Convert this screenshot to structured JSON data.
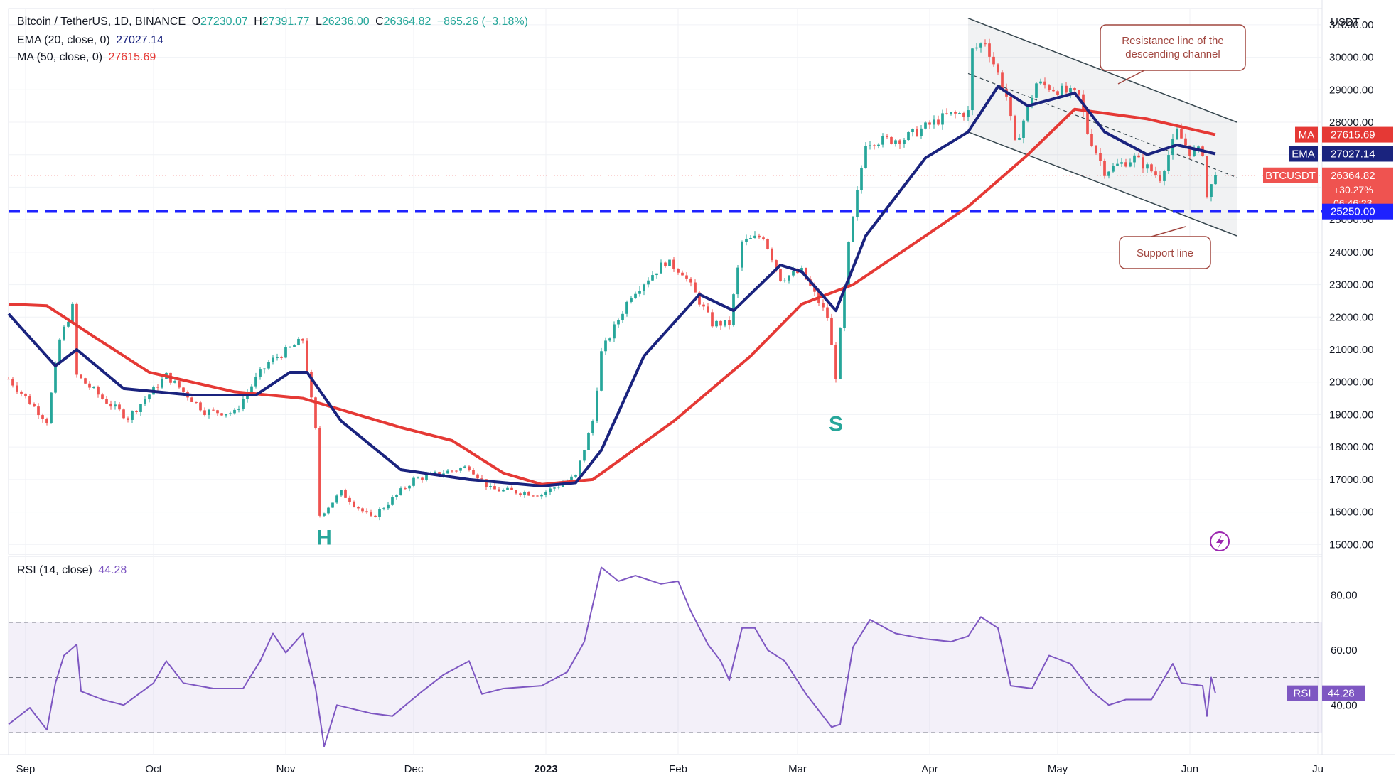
{
  "header": {
    "symbol_line": "Bitcoin / TetherUS, 1D, BINANCE",
    "open_label": "O",
    "open": "27230.07",
    "high_label": "H",
    "high": "27391.77",
    "low_label": "L",
    "low": "26236.00",
    "close_label": "C",
    "close": "26364.82",
    "change": "−865.26 (−3.18%)",
    "ema_label": "EMA (20, close, 0)",
    "ema_value": "27027.14",
    "ma_label": "MA (50, close, 0)",
    "ma_value": "27615.69",
    "rsi_label": "RSI (14, close)",
    "rsi_value": "44.28"
  },
  "chart_data": [
    {
      "type": "candlestick",
      "title": "Bitcoin / TetherUS, 1D, BINANCE",
      "y_unit": "USDT",
      "ylim": [
        14700,
        31500
      ],
      "y_ticks": [
        15000,
        16000,
        17000,
        18000,
        19000,
        20000,
        21000,
        22000,
        23000,
        24000,
        25000,
        26000,
        27000,
        28000,
        29000,
        30000,
        31000
      ],
      "y_tick_labels": [
        "15000.00",
        "16000.00",
        "17000.00",
        "18000.00",
        "19000.00",
        "20000.00",
        "21000.00",
        "22000.00",
        "23000.00",
        "24000.00",
        "25000.00",
        "26000.00",
        "27000.00",
        "28000.00",
        "29000.00",
        "30000.00",
        "31000.00"
      ],
      "x_range": [
        "2022-08-28",
        "2023-07-02"
      ],
      "x_ticks": [
        {
          "label": "Sep",
          "date": "2022-09-01"
        },
        {
          "label": "Oct",
          "date": "2022-10-01"
        },
        {
          "label": "Nov",
          "date": "2022-11-01"
        },
        {
          "label": "Dec",
          "date": "2022-12-01"
        },
        {
          "label": "2023",
          "date": "2023-01-01"
        },
        {
          "label": "Feb",
          "date": "2023-02-01"
        },
        {
          "label": "Mar",
          "date": "2023-03-01"
        },
        {
          "label": "Apr",
          "date": "2023-04-01"
        },
        {
          "label": "May",
          "date": "2023-05-01"
        },
        {
          "label": "Jun",
          "date": "2023-06-01"
        },
        {
          "label": "Ju",
          "date": "2023-07-01"
        }
      ],
      "close_path": [
        [
          "2022-08-28",
          20100
        ],
        [
          "2022-09-06",
          18800
        ],
        [
          "2022-09-09",
          21300
        ],
        [
          "2022-09-12",
          22300
        ],
        [
          "2022-09-13",
          20200
        ],
        [
          "2022-09-19",
          19500
        ],
        [
          "2022-09-25",
          18900
        ],
        [
          "2022-10-04",
          20200
        ],
        [
          "2022-10-13",
          19100
        ],
        [
          "2022-10-20",
          19050
        ],
        [
          "2022-10-25",
          20100
        ],
        [
          "2022-10-28",
          20600
        ],
        [
          "2022-11-05",
          21300
        ],
        [
          "2022-11-08",
          18500
        ],
        [
          "2022-11-09",
          15900
        ],
        [
          "2022-11-14",
          16600
        ],
        [
          "2022-11-21",
          15800
        ],
        [
          "2022-12-01",
          17000
        ],
        [
          "2022-12-14",
          17400
        ],
        [
          "2022-12-19",
          16700
        ],
        [
          "2022-12-31",
          16550
        ],
        [
          "2023-01-08",
          17100
        ],
        [
          "2023-01-12",
          18800
        ],
        [
          "2023-01-14",
          20900
        ],
        [
          "2023-01-21",
          22700
        ],
        [
          "2023-01-29",
          23700
        ],
        [
          "2023-02-02",
          23400
        ],
        [
          "2023-02-09",
          21800
        ],
        [
          "2023-02-13",
          21800
        ],
        [
          "2023-02-16",
          24300
        ],
        [
          "2023-02-21",
          24500
        ],
        [
          "2023-02-25",
          23200
        ],
        [
          "2023-03-02",
          23400
        ],
        [
          "2023-03-08",
          22000
        ],
        [
          "2023-03-10",
          20200
        ],
        [
          "2023-03-13",
          24200
        ],
        [
          "2023-03-17",
          27400
        ],
        [
          "2023-03-26",
          27500
        ],
        [
          "2023-04-05",
          28200
        ],
        [
          "2023-04-10",
          28300
        ],
        [
          "2023-04-11",
          30200
        ],
        [
          "2023-04-14",
          30500
        ],
        [
          "2023-04-19",
          28800
        ],
        [
          "2023-04-21",
          27300
        ],
        [
          "2023-04-26",
          29200
        ],
        [
          "2023-05-06",
          28800
        ],
        [
          "2023-05-08",
          27700
        ],
        [
          "2023-05-12",
          26500
        ],
        [
          "2023-05-19",
          26900
        ],
        [
          "2023-05-25",
          26300
        ],
        [
          "2023-05-29",
          27700
        ],
        [
          "2023-06-01",
          27100
        ],
        [
          "2023-06-04",
          27100
        ],
        [
          "2023-06-05",
          25700
        ],
        [
          "2023-06-07",
          26364.82
        ]
      ],
      "ema20": {
        "label": "EMA",
        "value": "27027.14",
        "color": "#1a237e",
        "path": [
          [
            "2022-08-28",
            22100
          ],
          [
            "2022-09-08",
            20500
          ],
          [
            "2022-09-13",
            21000
          ],
          [
            "2022-09-24",
            19800
          ],
          [
            "2022-10-10",
            19600
          ],
          [
            "2022-10-25",
            19600
          ],
          [
            "2022-11-02",
            20300
          ],
          [
            "2022-11-06",
            20300
          ],
          [
            "2022-11-14",
            18800
          ],
          [
            "2022-11-28",
            17300
          ],
          [
            "2022-12-14",
            17000
          ],
          [
            "2022-12-31",
            16800
          ],
          [
            "2023-01-08",
            16900
          ],
          [
            "2023-01-14",
            17900
          ],
          [
            "2023-01-24",
            20800
          ],
          [
            "2023-02-06",
            22700
          ],
          [
            "2023-02-14",
            22200
          ],
          [
            "2023-02-25",
            23600
          ],
          [
            "2023-03-02",
            23400
          ],
          [
            "2023-03-10",
            22200
          ],
          [
            "2023-03-17",
            24500
          ],
          [
            "2023-03-31",
            26900
          ],
          [
            "2023-04-10",
            27700
          ],
          [
            "2023-04-17",
            29100
          ],
          [
            "2023-04-24",
            28500
          ],
          [
            "2023-05-05",
            28900
          ],
          [
            "2023-05-12",
            27700
          ],
          [
            "2023-05-22",
            27000
          ],
          [
            "2023-05-29",
            27300
          ],
          [
            "2023-06-07",
            27027.14
          ]
        ]
      },
      "ma50": {
        "label": "MA",
        "value": "27615.69",
        "color": "#e53935",
        "path": [
          [
            "2022-08-28",
            22400
          ],
          [
            "2022-09-06",
            22350
          ],
          [
            "2022-09-17",
            21400
          ],
          [
            "2022-09-30",
            20300
          ],
          [
            "2022-10-20",
            19700
          ],
          [
            "2022-11-05",
            19500
          ],
          [
            "2022-11-28",
            18600
          ],
          [
            "2022-12-10",
            18200
          ],
          [
            "2022-12-22",
            17200
          ],
          [
            "2022-12-31",
            16850
          ],
          [
            "2023-01-12",
            17000
          ],
          [
            "2023-01-31",
            18800
          ],
          [
            "2023-02-18",
            20800
          ],
          [
            "2023-03-02",
            22400
          ],
          [
            "2023-03-14",
            23000
          ],
          [
            "2023-03-31",
            24500
          ],
          [
            "2023-04-10",
            25400
          ],
          [
            "2023-04-24",
            27000
          ],
          [
            "2023-05-05",
            28400
          ],
          [
            "2023-05-22",
            28100
          ],
          [
            "2023-06-07",
            27615.69
          ]
        ]
      },
      "price_tags": [
        {
          "label": "MA",
          "value": "27615.69",
          "color": "#e53935"
        },
        {
          "label": "EMA",
          "value": "27027.14",
          "color": "#1a237e"
        },
        {
          "label": "BTCUSDT",
          "value": "26364.82",
          "extra": [
            "+30.27%",
            "06:46:23"
          ],
          "color": "#ef5350"
        },
        {
          "label": "",
          "value": "25250.00",
          "color": "#1e22ff"
        }
      ],
      "support_level": {
        "value": 25250,
        "label": "25250.00",
        "color": "#1e22ff"
      },
      "channel": {
        "resistance": [
          [
            "2023-04-10",
            31200
          ],
          [
            "2023-06-12",
            28000
          ]
        ],
        "mid": [
          [
            "2023-04-10",
            29500
          ],
          [
            "2023-06-12",
            26300
          ]
        ],
        "support": [
          [
            "2023-04-10",
            27700
          ],
          [
            "2023-06-12",
            24500
          ]
        ]
      },
      "annotations": [
        {
          "text_lines": [
            "Resistance line of the",
            "descending channel"
          ]
        },
        {
          "text_lines": [
            "Support line"
          ]
        },
        {
          "text": "H",
          "date": "2022-11-10",
          "price": 15000
        },
        {
          "text": "S",
          "date": "2023-03-10",
          "price": 18500
        }
      ]
    },
    {
      "type": "line",
      "title": "RSI (14, close)",
      "series": [
        {
          "name": "RSI",
          "value": "44.28",
          "color": "#7e57c2",
          "path": [
            [
              "2022-08-28",
              33
            ],
            [
              "2022-09-02",
              39
            ],
            [
              "2022-09-06",
              31
            ],
            [
              "2022-09-08",
              48
            ],
            [
              "2022-09-10",
              58
            ],
            [
              "2022-09-13",
              62
            ],
            [
              "2022-09-14",
              45
            ],
            [
              "2022-09-19",
              42
            ],
            [
              "2022-09-24",
              40
            ],
            [
              "2022-10-01",
              48
            ],
            [
              "2022-10-04",
              56
            ],
            [
              "2022-10-08",
              48
            ],
            [
              "2022-10-15",
              46
            ],
            [
              "2022-10-22",
              46
            ],
            [
              "2022-10-26",
              56
            ],
            [
              "2022-10-29",
              66
            ],
            [
              "2022-11-01",
              59
            ],
            [
              "2022-11-05",
              66
            ],
            [
              "2022-11-08",
              46
            ],
            [
              "2022-11-10",
              25
            ],
            [
              "2022-11-13",
              40
            ],
            [
              "2022-11-21",
              37
            ],
            [
              "2022-11-26",
              36
            ],
            [
              "2022-12-03",
              45
            ],
            [
              "2022-12-08",
              51
            ],
            [
              "2022-12-14",
              56
            ],
            [
              "2022-12-17",
              44
            ],
            [
              "2022-12-22",
              46
            ],
            [
              "2022-12-31",
              47
            ],
            [
              "2023-01-06",
              52
            ],
            [
              "2023-01-10",
              63
            ],
            [
              "2023-01-14",
              90
            ],
            [
              "2023-01-18",
              85
            ],
            [
              "2023-01-22",
              87
            ],
            [
              "2023-01-28",
              84
            ],
            [
              "2023-02-01",
              85
            ],
            [
              "2023-02-04",
              74
            ],
            [
              "2023-02-08",
              62
            ],
            [
              "2023-02-11",
              56
            ],
            [
              "2023-02-13",
              49
            ],
            [
              "2023-02-16",
              68
            ],
            [
              "2023-02-19",
              68
            ],
            [
              "2023-02-22",
              60
            ],
            [
              "2023-02-26",
              56
            ],
            [
              "2023-03-03",
              44
            ],
            [
              "2023-03-09",
              32
            ],
            [
              "2023-03-11",
              33
            ],
            [
              "2023-03-14",
              61
            ],
            [
              "2023-03-18",
              71
            ],
            [
              "2023-03-24",
              66
            ],
            [
              "2023-03-31",
              64
            ],
            [
              "2023-04-06",
              63
            ],
            [
              "2023-04-10",
              65
            ],
            [
              "2023-04-13",
              72
            ],
            [
              "2023-04-17",
              68
            ],
            [
              "2023-04-20",
              47
            ],
            [
              "2023-04-25",
              46
            ],
            [
              "2023-04-29",
              58
            ],
            [
              "2023-05-04",
              55
            ],
            [
              "2023-05-09",
              45
            ],
            [
              "2023-05-13",
              40
            ],
            [
              "2023-05-17",
              42
            ],
            [
              "2023-05-23",
              42
            ],
            [
              "2023-05-28",
              55
            ],
            [
              "2023-05-30",
              48
            ],
            [
              "2023-06-04",
              47
            ],
            [
              "2023-06-05",
              36
            ],
            [
              "2023-06-06",
              50
            ],
            [
              "2023-06-07",
              44.28
            ]
          ]
        }
      ],
      "ylim": [
        22,
        94
      ],
      "y_ticks": [
        40,
        60,
        80
      ],
      "y_tick_labels": [
        "40.00",
        "60.00",
        "80.00"
      ],
      "band": [
        30,
        70
      ],
      "midline": 50
    }
  ]
}
